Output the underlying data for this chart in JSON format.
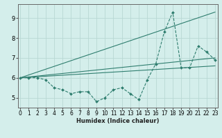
{
  "title": "",
  "xlabel": "Humidex (Indice chaleur)",
  "ylabel": "",
  "bg_color": "#d4eeeb",
  "grid_color": "#b8d8d4",
  "line_color": "#2e7d6e",
  "x_ticks": [
    0,
    1,
    2,
    3,
    4,
    5,
    6,
    7,
    8,
    9,
    10,
    11,
    12,
    13,
    14,
    15,
    16,
    17,
    18,
    19,
    20,
    21,
    22,
    23
  ],
  "y_ticks": [
    5,
    6,
    7,
    8,
    9
  ],
  "ylim": [
    4.5,
    9.7
  ],
  "xlim": [
    -0.3,
    23.3
  ],
  "series_main": {
    "x": [
      0,
      1,
      2,
      3,
      4,
      5,
      6,
      7,
      8,
      9,
      10,
      11,
      12,
      13,
      14,
      15,
      16,
      17,
      18,
      19,
      20,
      21,
      22,
      23
    ],
    "y": [
      6.0,
      6.0,
      6.0,
      5.9,
      5.5,
      5.4,
      5.2,
      5.3,
      5.3,
      4.8,
      5.0,
      5.4,
      5.5,
      5.2,
      4.9,
      5.9,
      6.7,
      8.3,
      9.3,
      6.5,
      6.5,
      7.6,
      7.3,
      6.9
    ]
  },
  "trend1": {
    "x": [
      0,
      23
    ],
    "y": [
      6.0,
      9.3
    ]
  },
  "trend2": {
    "x": [
      0,
      23
    ],
    "y": [
      6.0,
      7.0
    ]
  },
  "trend3": {
    "x": [
      0,
      23
    ],
    "y": [
      6.0,
      6.6
    ]
  }
}
